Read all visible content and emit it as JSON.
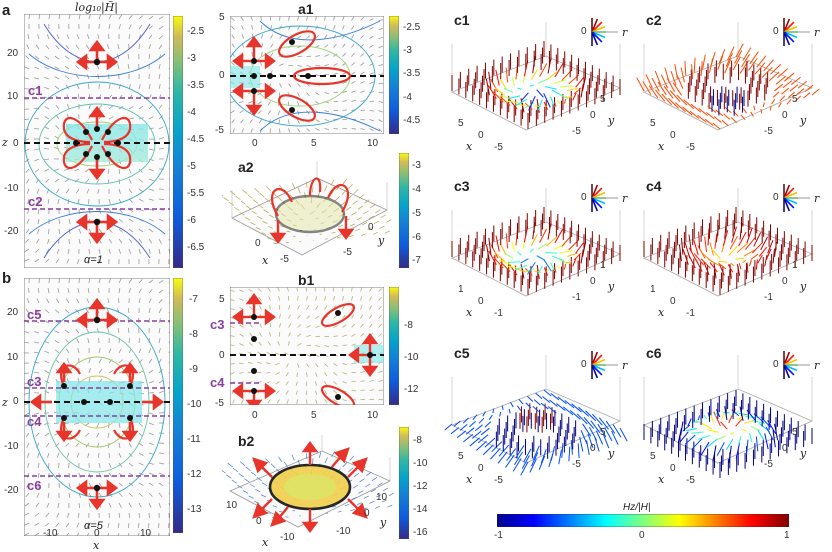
{
  "panel_labels": {
    "a": "a",
    "b": "b",
    "a1": "a1",
    "a2": "a2",
    "b1": "b1",
    "b2": "b2",
    "c1": "c1",
    "c2": "c2",
    "c3": "c3",
    "c4": "c4",
    "c5": "c5",
    "c6": "c6"
  },
  "a_title": "log₁₀|H̃|",
  "a_colorbar": [
    "-2.5",
    "-3",
    "-3.5",
    "-4",
    "-4.5",
    "-5",
    "-5.5",
    "-6",
    "-6.5"
  ],
  "a_yticks": [
    "20",
    "10",
    "0",
    "-10",
    "-20"
  ],
  "a_zlabel": "z",
  "a_alpha": "α=1",
  "b_colorbar": [
    "-7",
    "-8",
    "-9",
    "-10",
    "-11",
    "-12",
    "-13"
  ],
  "b_yticks": [
    "20",
    "10",
    "0",
    "-10",
    "-20"
  ],
  "b_xticks": [
    "-10",
    "0",
    "10"
  ],
  "b_xlabel": "x",
  "b_zlabel": "z",
  "b_alpha": "α=5",
  "cut_labels": {
    "c1": "c1",
    "c2": "c2",
    "c3": "c3",
    "c4": "c4",
    "c5": "c5",
    "c6": "c6"
  },
  "a1_yticks": [
    "5",
    "0",
    "-5"
  ],
  "a1_xticks": [
    "0",
    "5",
    "10"
  ],
  "a1_colorbar": [
    "-2.5",
    "-3",
    "-3.5",
    "-4",
    "-4.5"
  ],
  "a2_colorbar": [
    "-3",
    "-4",
    "-5",
    "-6",
    "-7"
  ],
  "a2_axes": {
    "x": "x",
    "y": "y",
    "tx": [
      "0",
      "-5"
    ],
    "ty": [
      "0",
      "-5"
    ]
  },
  "b1_yticks": [
    "5",
    "0",
    "-5"
  ],
  "b1_xticks": [
    "0",
    "5",
    "10"
  ],
  "b1_colorbar": [
    "-8",
    "-10",
    "-12"
  ],
  "b2_colorbar": [
    "-8",
    "-10",
    "-12",
    "-14",
    "-16"
  ],
  "b2_axes": {
    "x": "x",
    "y": "y",
    "tx": [
      "10",
      "0",
      "-10"
    ],
    "ty": [
      "10",
      "0",
      "-10"
    ]
  },
  "c_axes": {
    "c1": {
      "x": "x",
      "y": "y",
      "tx": [
        "5",
        "0",
        "-5"
      ],
      "ty": [
        "5",
        "0",
        "-5"
      ]
    },
    "c2": {
      "x": "x",
      "y": "y",
      "tx": [
        "5",
        "0",
        "-5"
      ],
      "ty": [
        "5",
        "0",
        "-5"
      ]
    },
    "c3": {
      "x": "x",
      "y": "y",
      "tx": [
        "1",
        "0",
        "-1"
      ],
      "ty": [
        "1",
        "0",
        "-1"
      ]
    },
    "c4": {
      "x": "x",
      "y": "y",
      "tx": [
        "1",
        "0",
        "-1"
      ],
      "ty": [
        "1",
        "0",
        "-1"
      ]
    },
    "c5": {
      "x": "x",
      "y": "y",
      "tx": [
        "5",
        "0",
        "-5"
      ],
      "ty": [
        "5",
        "0",
        "-5"
      ]
    },
    "c6": {
      "x": "x",
      "y": "y",
      "tx": [
        "5",
        "0",
        "-5"
      ],
      "ty": [
        "5",
        "0",
        "-5"
      ]
    }
  },
  "key": {
    "zero": "0",
    "r": "r"
  },
  "hz_bar": {
    "title": "Hz/|H|",
    "ticks": [
      "-1",
      "0",
      "1"
    ]
  },
  "colors": {
    "red": "#e8352b",
    "purple": "#8a3fa0",
    "black": "#111111"
  }
}
